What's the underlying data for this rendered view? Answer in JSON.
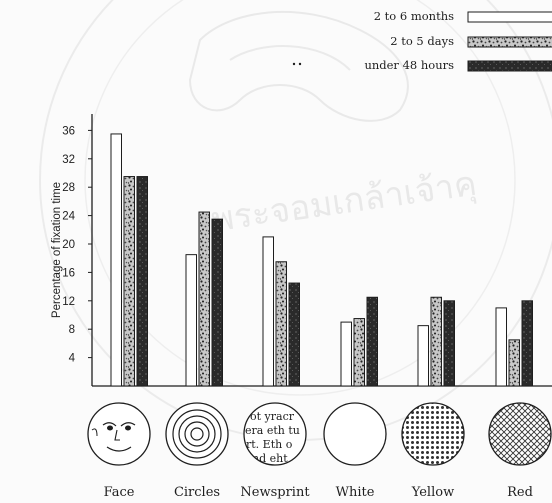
{
  "chart_data": {
    "type": "bar",
    "ylabel": "Percentage of fixation time",
    "yticks": [
      4,
      8,
      12,
      16,
      20,
      24,
      28,
      32,
      36
    ],
    "ylim": [
      0,
      37
    ],
    "categories": [
      "Face",
      "Circles",
      "Newsprint",
      "White",
      "Yellow",
      "Red"
    ],
    "series": [
      {
        "name": "2 to 6 months",
        "values": [
          35.5,
          18.5,
          21,
          9,
          8.5,
          11
        ],
        "fill": "white"
      },
      {
        "name": "2 to 5 days",
        "values": [
          29.5,
          24.5,
          17.5,
          9.5,
          12.5,
          6.5
        ],
        "fill": "speckle"
      },
      {
        "name": "under 48 hours",
        "values": [
          29.5,
          23.5,
          14.5,
          12.5,
          12,
          12
        ],
        "fill": "dark"
      }
    ],
    "legend_position": "top-right",
    "grid": false
  },
  "stimuli": {
    "newsprint_lines": [
      "ot yracr",
      "era eth tu",
      "rt. Eth o",
      "nd eht"
    ]
  },
  "watermark": {
    "text": "มหาวิทยาลัยพระจอมเกล้าเจ้าคุณ",
    "visible_fragment": "พระจอมเกล้าเจ้าคุ"
  },
  "colors": {
    "ink": "#1e1e1e",
    "paper": "#fbfbfb",
    "watermark": "#dcdcdc"
  }
}
